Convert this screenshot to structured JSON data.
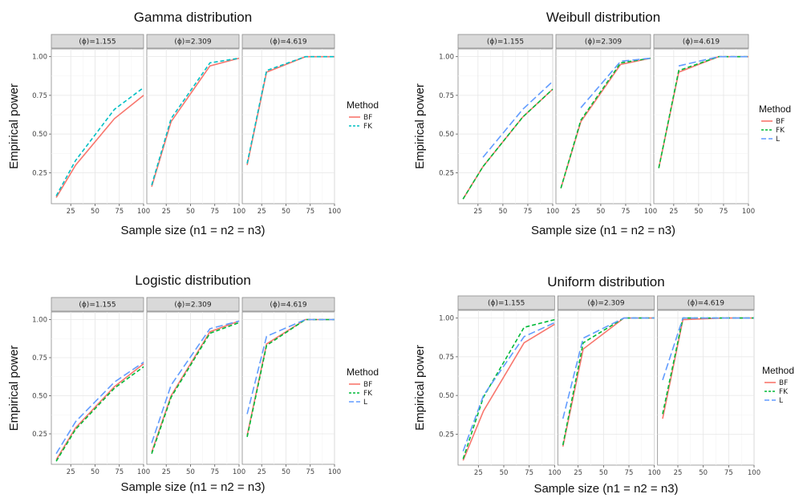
{
  "chart_data": [
    {
      "type": "line",
      "title": "Gamma distribution",
      "xlabel": "Sample size (n1 = n2 = n3)",
      "ylabel": "Empirical power",
      "facets": [
        "(ϕ)=1.155",
        "(ϕ)=2.309",
        "(ϕ)=4.619"
      ],
      "x": [
        10,
        30,
        70,
        100
      ],
      "xlim": [
        5,
        100
      ],
      "ylim": [
        0.05,
        1.05
      ],
      "xticks": [
        25,
        50,
        75,
        100
      ],
      "yticks": [
        "0.25",
        "0.50",
        "0.75",
        "1.00"
      ],
      "legend": {
        "title": "Method",
        "position": "right"
      },
      "series": [
        {
          "name": "BF",
          "color": "#F8766D",
          "dash": "solid",
          "facet_values": [
            [
              0.09,
              0.3,
              0.6,
              0.75
            ],
            [
              0.16,
              0.58,
              0.94,
              0.99
            ],
            [
              0.3,
              0.9,
              1.0,
              1.0
            ]
          ]
        },
        {
          "name": "FK",
          "color": "#00BFC4",
          "dash": "dash",
          "facet_values": [
            [
              0.1,
              0.33,
              0.66,
              0.8
            ],
            [
              0.17,
              0.6,
              0.96,
              0.99
            ],
            [
              0.31,
              0.91,
              1.0,
              1.0
            ]
          ]
        }
      ]
    },
    {
      "type": "line",
      "title": "Weibull distribution",
      "xlabel": "Sample size (n1 = n2 = n3)",
      "ylabel": "Empirical power",
      "facets": [
        "(ϕ)=1.155",
        "(ϕ)=2.309",
        "(ϕ)=4.619"
      ],
      "x": [
        10,
        30,
        70,
        100
      ],
      "xlim": [
        5,
        100
      ],
      "ylim": [
        0.05,
        1.05
      ],
      "xticks": [
        25,
        50,
        75,
        100
      ],
      "yticks": [
        "0.25",
        "0.50",
        "0.75",
        "1.00"
      ],
      "legend": {
        "title": "Method",
        "position": "right"
      },
      "series": [
        {
          "name": "BF",
          "color": "#F8766D",
          "dash": "solid",
          "facet_values": [
            [
              0.08,
              0.29,
              0.61,
              0.79
            ],
            [
              0.15,
              0.58,
              0.95,
              0.99
            ],
            [
              0.28,
              0.9,
              1.0,
              1.0
            ]
          ]
        },
        {
          "name": "FK",
          "color": "#00BA38",
          "dash": "dash",
          "facet_values": [
            [
              0.08,
              0.29,
              0.61,
              0.79
            ],
            [
              0.15,
              0.59,
              0.96,
              0.99
            ],
            [
              0.28,
              0.91,
              1.0,
              1.0
            ]
          ]
        },
        {
          "name": "L",
          "color": "#619CFF",
          "dash": "longdash",
          "facet_values": [
            [
              null,
              0.35,
              0.66,
              0.84
            ],
            [
              null,
              0.67,
              0.97,
              0.99
            ],
            [
              null,
              0.94,
              1.0,
              1.0
            ]
          ]
        }
      ]
    },
    {
      "type": "line",
      "title": "Logistic distribution",
      "xlabel": "Sample size (n1 = n2 = n3)",
      "ylabel": "Empirical power",
      "facets": [
        "(ϕ)=1.155",
        "(ϕ)=2.309",
        "(ϕ)=4.619"
      ],
      "x": [
        10,
        30,
        70,
        100
      ],
      "xlim": [
        5,
        100
      ],
      "ylim": [
        0.05,
        1.05
      ],
      "xticks": [
        25,
        50,
        75,
        100
      ],
      "yticks": [
        "0.25",
        "0.50",
        "0.75",
        "1.00"
      ],
      "legend": {
        "title": "Method",
        "position": "right"
      },
      "series": [
        {
          "name": "BF",
          "color": "#F8766D",
          "dash": "solid",
          "facet_values": [
            [
              0.08,
              0.29,
              0.56,
              0.71
            ],
            [
              0.13,
              0.5,
              0.92,
              0.99
            ],
            [
              0.24,
              0.84,
              1.0,
              1.0
            ]
          ]
        },
        {
          "name": "FK",
          "color": "#00BA38",
          "dash": "dash",
          "facet_values": [
            [
              0.07,
              0.28,
              0.55,
              0.69
            ],
            [
              0.12,
              0.49,
              0.91,
              0.98
            ],
            [
              0.23,
              0.83,
              1.0,
              1.0
            ]
          ]
        },
        {
          "name": "L",
          "color": "#619CFF",
          "dash": "longdash",
          "facet_values": [
            [
              0.12,
              0.33,
              0.59,
              0.72
            ],
            [
              0.19,
              0.57,
              0.94,
              0.99
            ],
            [
              0.38,
              0.89,
              1.0,
              1.0
            ]
          ]
        }
      ]
    },
    {
      "type": "line",
      "title": "Uniform distribution",
      "xlabel": "Sample size (n1 = n2 = n3)",
      "ylabel": "Empirical power",
      "facets": [
        "(ϕ)=1.155",
        "(ϕ)=2.309",
        "(ϕ)=4.619"
      ],
      "x": [
        10,
        30,
        70,
        100
      ],
      "xlim": [
        5,
        100
      ],
      "ylim": [
        0.05,
        1.05
      ],
      "xticks": [
        25,
        50,
        75,
        100
      ],
      "yticks": [
        "0.25",
        "0.50",
        "0.75",
        "1.00"
      ],
      "legend": {
        "title": "Method",
        "position": "right"
      },
      "series": [
        {
          "name": "BF",
          "color": "#F8766D",
          "dash": "solid",
          "facet_values": [
            [
              0.08,
              0.4,
              0.84,
              0.96
            ],
            [
              0.17,
              0.8,
              1.0,
              1.0
            ],
            [
              0.35,
              0.99,
              1.0,
              1.0
            ]
          ]
        },
        {
          "name": "FK",
          "color": "#00BA38",
          "dash": "dash",
          "facet_values": [
            [
              0.09,
              0.49,
              0.94,
              0.99
            ],
            [
              0.18,
              0.84,
              1.0,
              1.0
            ],
            [
              0.38,
              1.0,
              1.0,
              1.0
            ]
          ]
        },
        {
          "name": "L",
          "color": "#619CFF",
          "dash": "longdash",
          "facet_values": [
            [
              0.14,
              0.5,
              0.88,
              0.97
            ],
            [
              0.35,
              0.87,
              1.0,
              1.0
            ],
            [
              0.6,
              1.0,
              1.0,
              1.0
            ]
          ]
        }
      ]
    }
  ]
}
